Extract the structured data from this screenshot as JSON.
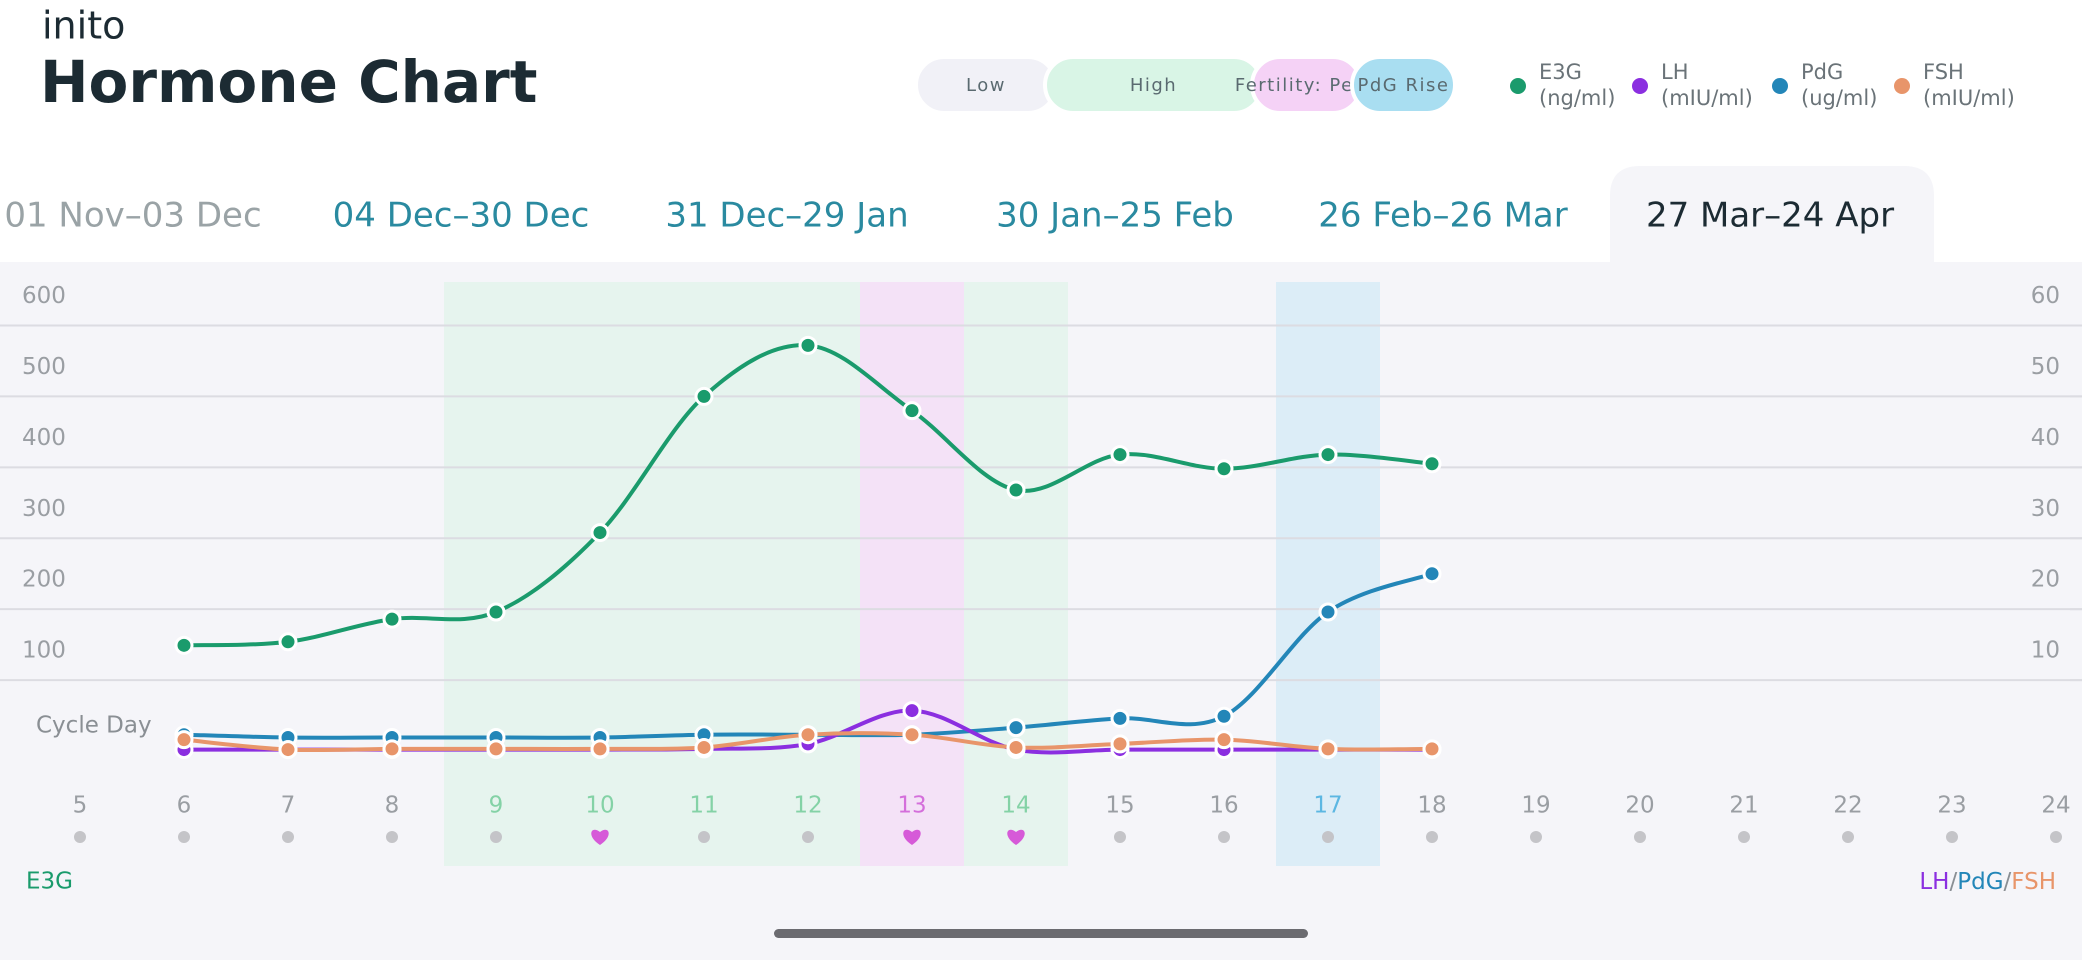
{
  "brand": "inito",
  "title": "Hormone Chart",
  "legend_pills": [
    {
      "label": "PdG Rise",
      "color": "#a9def1"
    },
    {
      "label": "Fertility: Peak",
      "color": "#f5d2f6"
    },
    {
      "label": "High",
      "color": "#d9f5e6"
    },
    {
      "label": "Low",
      "color": "#f1f1f7"
    }
  ],
  "tabs": [
    {
      "label": "01 Nov–03 Dec",
      "color": "#9aa3a6"
    },
    {
      "label": "04 Dec–30 Dec",
      "color": "#2a8aa0"
    },
    {
      "label": "31 Dec–29 Jan",
      "color": "#2a8aa0"
    },
    {
      "label": "30 Jan–25 Feb",
      "color": "#2a8aa0"
    },
    {
      "label": "26 Feb–26 Mar",
      "color": "#2a8aa0"
    },
    {
      "label": "27 Mar–24 Apr",
      "color": "#1c2b33",
      "active": true
    }
  ],
  "chart_data": {
    "type": "line",
    "xlabel": "Cycle Day",
    "ylabel": "E3G",
    "y2label": "LH/PdG/FSH",
    "x": [
      6,
      7,
      8,
      9,
      10,
      11,
      12,
      13,
      14,
      15,
      16,
      17,
      18
    ],
    "xlim": [
      5,
      24
    ],
    "xticks": [
      5,
      6,
      7,
      8,
      9,
      10,
      11,
      12,
      13,
      14,
      15,
      16,
      17,
      18,
      19,
      20,
      21,
      22,
      23,
      24
    ],
    "ylim": [
      0,
      600
    ],
    "yticks": [
      100,
      200,
      300,
      400,
      500,
      600
    ],
    "y2lim": [
      0,
      60
    ],
    "y2ticks": [
      10,
      20,
      30,
      40,
      50,
      60
    ],
    "grid": true,
    "series": [
      {
        "name": "E3G",
        "unit": "(ng/ml)",
        "color": "#1a9b6c",
        "values": [
          149,
          154,
          186,
          196,
          308,
          500,
          572,
          480,
          368,
          418,
          398,
          418,
          405
        ]
      },
      {
        "name": "LH",
        "unit": "(mIU/ml)",
        "color": "#8b2fe0",
        "axis": "y2",
        "values": [
          0.2,
          0.2,
          0.2,
          0.2,
          0.2,
          0.3,
          1.0,
          5.7,
          0.2,
          0.2,
          0.2,
          0.2,
          0.2
        ]
      },
      {
        "name": "PdG",
        "unit": "(ug/ml)",
        "color": "#2386b8",
        "axis": "y2",
        "values": [
          2.3,
          1.9,
          1.9,
          1.9,
          1.9,
          2.3,
          2.3,
          2.3,
          3.3,
          4.6,
          4.9,
          19.6,
          25.0
        ]
      },
      {
        "name": "FSH",
        "unit": "(mIU/ml)",
        "color": "#e8956a",
        "axis": "y2",
        "values": [
          1.6,
          0.2,
          0.3,
          0.3,
          0.3,
          0.5,
          2.3,
          2.3,
          0.5,
          1.0,
          1.6,
          0.3,
          0.3
        ]
      }
    ],
    "fertility": {
      "high": {
        "days": [
          9,
          10,
          11,
          12,
          14
        ],
        "color": "#e6f4ee",
        "tick_color": "#84d2a6"
      },
      "peak": {
        "days": [
          13
        ],
        "color": "#f4e2f7",
        "tick_color": "#d46fdb"
      },
      "pdg_rise": {
        "days": [
          17
        ],
        "color": "#dcedf7",
        "tick_color": "#5cb7e2"
      }
    },
    "hearts": {
      "days": [
        10,
        13,
        14
      ],
      "color": "#d65ad8"
    }
  }
}
